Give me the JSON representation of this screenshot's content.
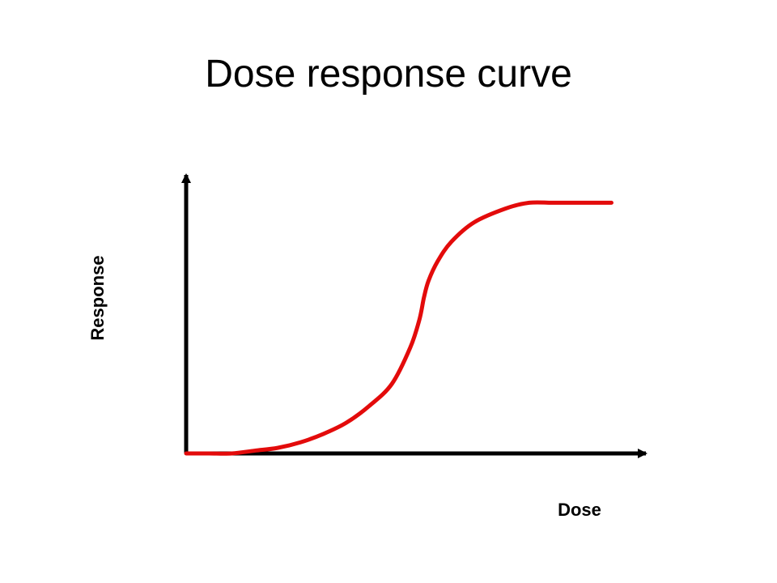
{
  "slide": {
    "title": "Dose response curve"
  },
  "chart_data": {
    "type": "line",
    "title": "Dose response curve",
    "xlabel": "Dose",
    "ylabel": "Response",
    "grid": false,
    "legend": "none",
    "series": [
      {
        "color": "#e30b0b",
        "points": [
          [
            0.0,
            0.0
          ],
          [
            0.05,
            0.0
          ],
          [
            0.1,
            0.0
          ],
          [
            0.15,
            0.01
          ],
          [
            0.2,
            0.02
          ],
          [
            0.25,
            0.04
          ],
          [
            0.3,
            0.07
          ],
          [
            0.35,
            0.11
          ],
          [
            0.4,
            0.17
          ],
          [
            0.45,
            0.25
          ],
          [
            0.49,
            0.38
          ],
          [
            0.51,
            0.48
          ],
          [
            0.52,
            0.56
          ],
          [
            0.53,
            0.62
          ],
          [
            0.55,
            0.69
          ],
          [
            0.58,
            0.76
          ],
          [
            0.63,
            0.83
          ],
          [
            0.7,
            0.88
          ],
          [
            0.75,
            0.9
          ],
          [
            0.8,
            0.9
          ],
          [
            0.85,
            0.9
          ],
          [
            0.93,
            0.9
          ]
        ]
      }
    ],
    "axis_color": "#000000",
    "xlim": [
      0,
      1
    ],
    "ylim": [
      0,
      1
    ]
  }
}
